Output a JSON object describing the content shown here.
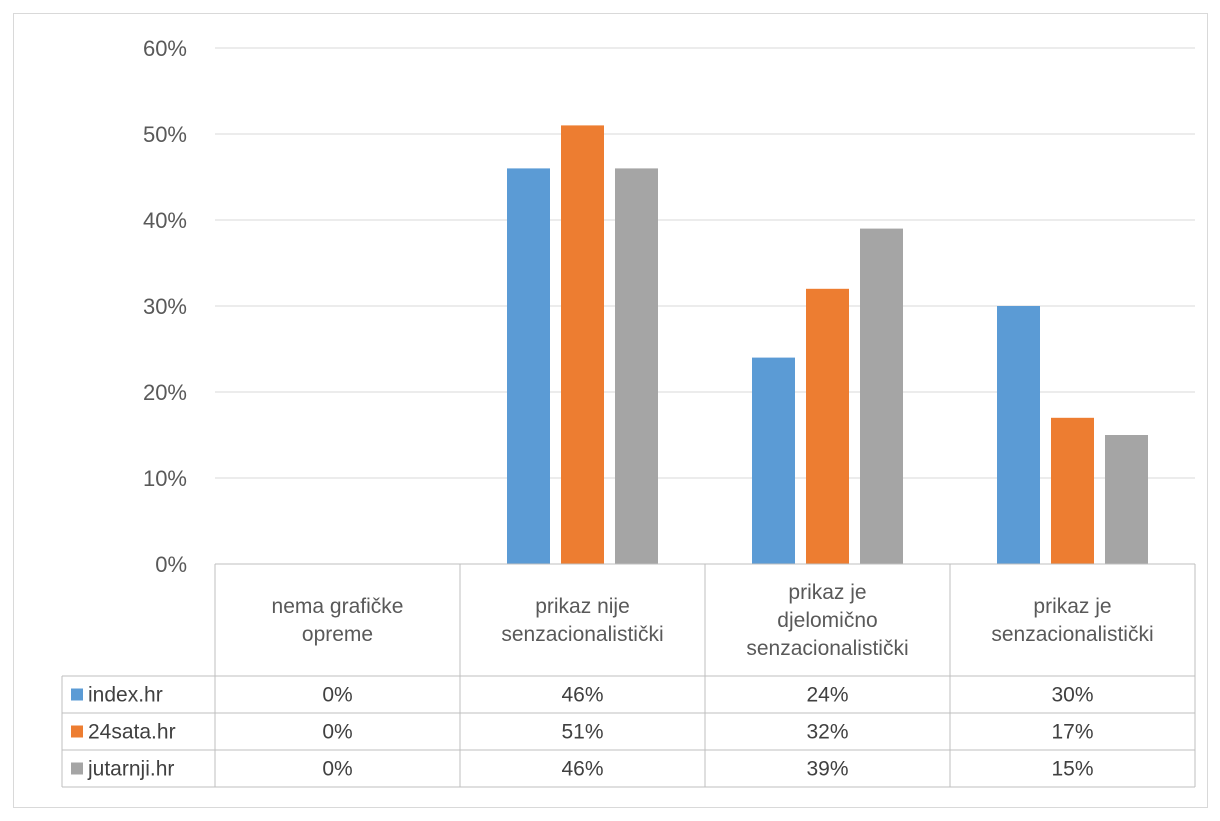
{
  "chart_data": {
    "type": "bar",
    "categories": [
      [
        "nema grafičke",
        "opreme"
      ],
      [
        "prikaz nije",
        "senzacionalistički"
      ],
      [
        "prikaz je",
        "djelomično",
        "senzacionalistički"
      ],
      [
        "prikaz je",
        "senzacionalistički"
      ]
    ],
    "series": [
      {
        "name": "index.hr",
        "color": "#5b9bd5",
        "values": [
          0,
          46,
          24,
          30
        ],
        "labels": [
          "0%",
          "46%",
          "24%",
          "30%"
        ]
      },
      {
        "name": "24sata.hr",
        "color": "#ed7d31",
        "values": [
          0,
          51,
          32,
          17
        ],
        "labels": [
          "0%",
          "51%",
          "32%",
          "17%"
        ]
      },
      {
        "name": "jutarnji.hr",
        "color": "#a5a5a5",
        "values": [
          0,
          46,
          39,
          15
        ],
        "labels": [
          "0%",
          "46%",
          "39%",
          "15%"
        ]
      }
    ],
    "yticks": [
      "0%",
      "10%",
      "20%",
      "30%",
      "40%",
      "50%",
      "60%"
    ],
    "ylim": [
      0,
      60
    ],
    "grid": true,
    "legend": "data table"
  }
}
